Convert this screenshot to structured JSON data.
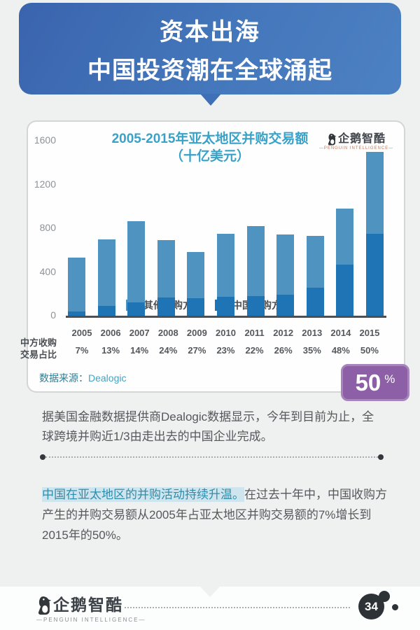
{
  "banner": {
    "line1": "资本出海",
    "line2": "中国投资潮在全球涌起"
  },
  "brand": {
    "name": "企鹅智酷",
    "subtitle": "—PENGUIN INTELLIGENCE—"
  },
  "chart_data": {
    "type": "bar",
    "stacked": true,
    "title": "2005-2015年亚太地区并购交易额",
    "subtitle": "（十亿美元）",
    "categories": [
      "2005",
      "2006",
      "2007",
      "2008",
      "2009",
      "2010",
      "2011",
      "2012",
      "2013",
      "2014",
      "2015"
    ],
    "series": [
      {
        "name": "中国收购方",
        "color": "#1e74b4",
        "values": [
          37,
          91,
          120,
          166,
          157,
          173,
          180,
          192,
          256,
          470,
          750
        ]
      },
      {
        "name": "其他收购方",
        "color": "#4f93c1",
        "values": [
          493,
          609,
          740,
          524,
          423,
          577,
          640,
          548,
          474,
          510,
          750
        ]
      }
    ],
    "totals": [
      530,
      700,
      860,
      690,
      580,
      750,
      820,
      740,
      730,
      980,
      1500
    ],
    "china_share_pct": [
      "7%",
      "13%",
      "14%",
      "24%",
      "27%",
      "23%",
      "22%",
      "26%",
      "35%",
      "48%",
      "50%"
    ],
    "legend": [
      {
        "label": "其他收购方",
        "color": "#4f93c1"
      },
      {
        "label": "中国收购方",
        "color": "#1e74b4"
      }
    ],
    "y_ticks": [
      0,
      400,
      800,
      1200,
      1600
    ],
    "ylim": [
      0,
      1600
    ],
    "grid": false,
    "legend_position": "top-left",
    "row_label_line1": "中方收购",
    "row_label_line2": "交易占比",
    "source_label": "数据来源：",
    "source_value": "Dealogic"
  },
  "badge": {
    "value": "50",
    "unit": "%",
    "color": "#8d5fa6"
  },
  "paragraphs": {
    "p1": "据美国金融数据提供商Dealogic数据显示，今年到目前为止，全球跨境并购近1/3由走出去的中国企业完成。",
    "p2_highlight": "中国在亚太地区的并购活动持续升温。",
    "p2_rest": "在过去十年中，中国收购方产生的并购交易额从2005年占亚太地区并购交易额的7%增长到2015年的50%。"
  },
  "footer": {
    "page_number": "34"
  },
  "colors": {
    "banner_blue_dark": "#3a64ae",
    "banner_blue_light": "#4c81c3",
    "title_teal": "#38a2c8",
    "highlight_bg": "#cfe5ee",
    "highlight_text": "#2f8cab",
    "badge_purple": "#8d5fa6"
  }
}
